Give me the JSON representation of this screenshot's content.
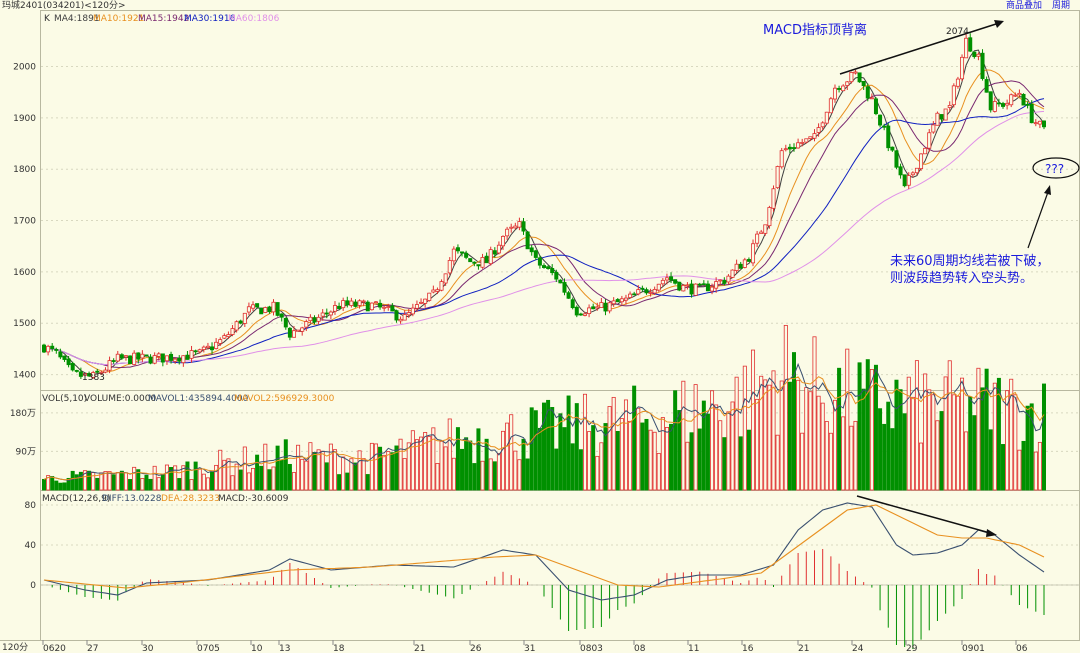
{
  "top_bar": {
    "title": "玛城2401(034201)<120分>",
    "links": [
      "商品叠加",
      "周期"
    ]
  },
  "colors": {
    "background": "#fbfbe6",
    "up": "#e03030",
    "down": "#009000",
    "ma4": "#404040",
    "ma10": "#e89020",
    "ma15": "#7a2870",
    "ma30": "#1020c0",
    "ma60": "#e090e8",
    "annotation": "#1a1adc",
    "diff": "#3a5070",
    "dea": "#e89020",
    "grid": "#d8d8c0"
  },
  "chart_data": [
    {
      "type": "candlestick",
      "name": "price",
      "legend": [
        "K",
        "MA4:1891",
        "MA10:1921",
        "MA15:1942",
        "MA30:1916",
        "MA60:1806"
      ],
      "ylim": [
        1370,
        2110
      ],
      "yticks": [
        1400,
        1500,
        1600,
        1700,
        1800,
        1900,
        2000
      ],
      "annotations": {
        "high_label": "2074",
        "low_label": "1383",
        "divergence_title": "MACD指标顶背离",
        "question": "???",
        "note_line1": "未来60周期均线若被下破，",
        "note_line2": "则波段趋势转入空头势。"
      }
    },
    {
      "type": "bar",
      "name": "volume",
      "legend": [
        "VOL(5,10)",
        "VOLUME:0.0000",
        "MAVOL1:435894.4000",
        "MAVOL2:596929.3000"
      ],
      "yticks": [
        "180万",
        "90万"
      ]
    },
    {
      "type": "macd",
      "name": "macd",
      "legend": [
        "MACD(12,26,9)",
        "DIFF:13.0228",
        "DEA:28.3233",
        "MACD:-30.6009"
      ],
      "ylim": [
        -55,
        95
      ],
      "yticks": [
        80,
        40,
        0
      ]
    }
  ],
  "x_axis": {
    "period_label": "120分",
    "labels": [
      "0620",
      "27",
      "30",
      "0705",
      "10",
      "13",
      "18",
      "21",
      "26",
      "31",
      "0803",
      "08",
      "11",
      "16",
      "21",
      "24",
      "29",
      "0901",
      "06"
    ]
  },
  "anchors": {
    "price": [
      [
        0,
        1455
      ],
      [
        3,
        1440
      ],
      [
        7,
        1400
      ],
      [
        12,
        1395
      ],
      [
        18,
        1430
      ],
      [
        28,
        1432
      ],
      [
        38,
        1440
      ],
      [
        44,
        1470
      ],
      [
        50,
        1525
      ],
      [
        56,
        1530
      ],
      [
        60,
        1480
      ],
      [
        67,
        1510
      ],
      [
        72,
        1535
      ],
      [
        80,
        1535
      ],
      [
        88,
        1510
      ],
      [
        95,
        1555
      ],
      [
        100,
        1640
      ],
      [
        104,
        1620
      ],
      [
        108,
        1620
      ],
      [
        112,
        1670
      ],
      [
        116,
        1690
      ],
      [
        120,
        1620
      ],
      [
        125,
        1590
      ],
      [
        130,
        1525
      ],
      [
        136,
        1530
      ],
      [
        142,
        1545
      ],
      [
        148,
        1570
      ],
      [
        152,
        1590
      ],
      [
        156,
        1570
      ],
      [
        160,
        1565
      ],
      [
        166,
        1585
      ],
      [
        172,
        1630
      ],
      [
        176,
        1700
      ],
      [
        180,
        1835
      ],
      [
        184,
        1850
      ],
      [
        188,
        1860
      ],
      [
        193,
        1960
      ],
      [
        198,
        1985
      ],
      [
        202,
        1935
      ],
      [
        206,
        1850
      ],
      [
        210,
        1760
      ],
      [
        214,
        1830
      ],
      [
        218,
        1900
      ],
      [
        221,
        1920
      ],
      [
        225,
        2050
      ],
      [
        228,
        2020
      ],
      [
        231,
        1920
      ],
      [
        235,
        1930
      ],
      [
        238,
        1950
      ],
      [
        241,
        1900
      ],
      [
        244,
        1875
      ]
    ],
    "volume": [
      [
        0,
        25
      ],
      [
        30,
        40
      ],
      [
        44,
        60
      ],
      [
        60,
        75
      ],
      [
        80,
        70
      ],
      [
        100,
        110
      ],
      [
        120,
        130
      ],
      [
        150,
        160
      ],
      [
        170,
        200
      ],
      [
        180,
        260
      ],
      [
        190,
        220
      ],
      [
        200,
        200
      ],
      [
        215,
        190
      ],
      [
        230,
        190
      ],
      [
        244,
        170
      ]
    ],
    "macd_diff": [
      [
        0,
        5
      ],
      [
        10,
        -5
      ],
      [
        18,
        -10
      ],
      [
        25,
        2
      ],
      [
        40,
        5
      ],
      [
        55,
        15
      ],
      [
        60,
        26
      ],
      [
        70,
        15
      ],
      [
        85,
        20
      ],
      [
        100,
        18
      ],
      [
        112,
        35
      ],
      [
        120,
        30
      ],
      [
        128,
        -5
      ],
      [
        136,
        -15
      ],
      [
        144,
        -10
      ],
      [
        152,
        5
      ],
      [
        160,
        10
      ],
      [
        170,
        10
      ],
      [
        178,
        20
      ],
      [
        184,
        55
      ],
      [
        190,
        75
      ],
      [
        196,
        82
      ],
      [
        202,
        78
      ],
      [
        208,
        40
      ],
      [
        212,
        30
      ],
      [
        218,
        32
      ],
      [
        224,
        40
      ],
      [
        228,
        55
      ],
      [
        232,
        50
      ],
      [
        238,
        30
      ],
      [
        244,
        13
      ]
    ],
    "macd_dea": [
      [
        0,
        5
      ],
      [
        20,
        -3
      ],
      [
        35,
        3
      ],
      [
        60,
        15
      ],
      [
        80,
        18
      ],
      [
        110,
        28
      ],
      [
        120,
        30
      ],
      [
        130,
        15
      ],
      [
        140,
        0
      ],
      [
        150,
        -2
      ],
      [
        165,
        6
      ],
      [
        175,
        12
      ],
      [
        186,
        45
      ],
      [
        196,
        75
      ],
      [
        203,
        80
      ],
      [
        212,
        62
      ],
      [
        218,
        50
      ],
      [
        224,
        47
      ],
      [
        230,
        47
      ],
      [
        238,
        40
      ],
      [
        244,
        28
      ]
    ]
  }
}
